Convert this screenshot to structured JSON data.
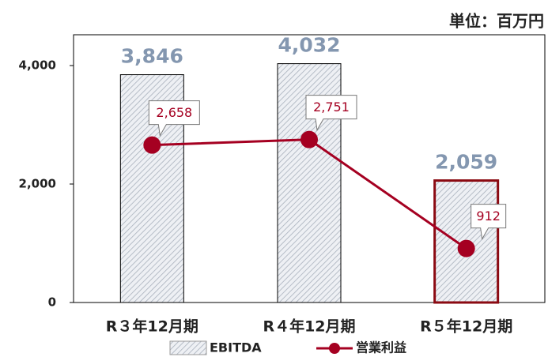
{
  "chart_data": {
    "type": "bar",
    "unit_label": "単位：百万円",
    "categories": [
      "R３年12月期",
      "R４年12月期",
      "R５年12月期"
    ],
    "series": [
      {
        "name": "EBITDA",
        "type": "bar",
        "color": "#c9cfd8",
        "values": [
          3846,
          4032,
          2059
        ],
        "value_labels": [
          "3,846",
          "4,032",
          "2,059"
        ]
      },
      {
        "name": "営業利益",
        "type": "line",
        "color": "#a50021",
        "values": [
          2658,
          2751,
          912
        ],
        "value_labels": [
          "2,658",
          "2,751",
          "912"
        ]
      }
    ],
    "highlight_index": 2,
    "highlight_color": "#8b0a12",
    "ylim": [
      0,
      4520
    ],
    "yticks": [
      0,
      {
        "value": 2000,
        "label": "2,000"
      },
      {
        "value": 4000,
        "label": "4,000"
      }
    ]
  }
}
